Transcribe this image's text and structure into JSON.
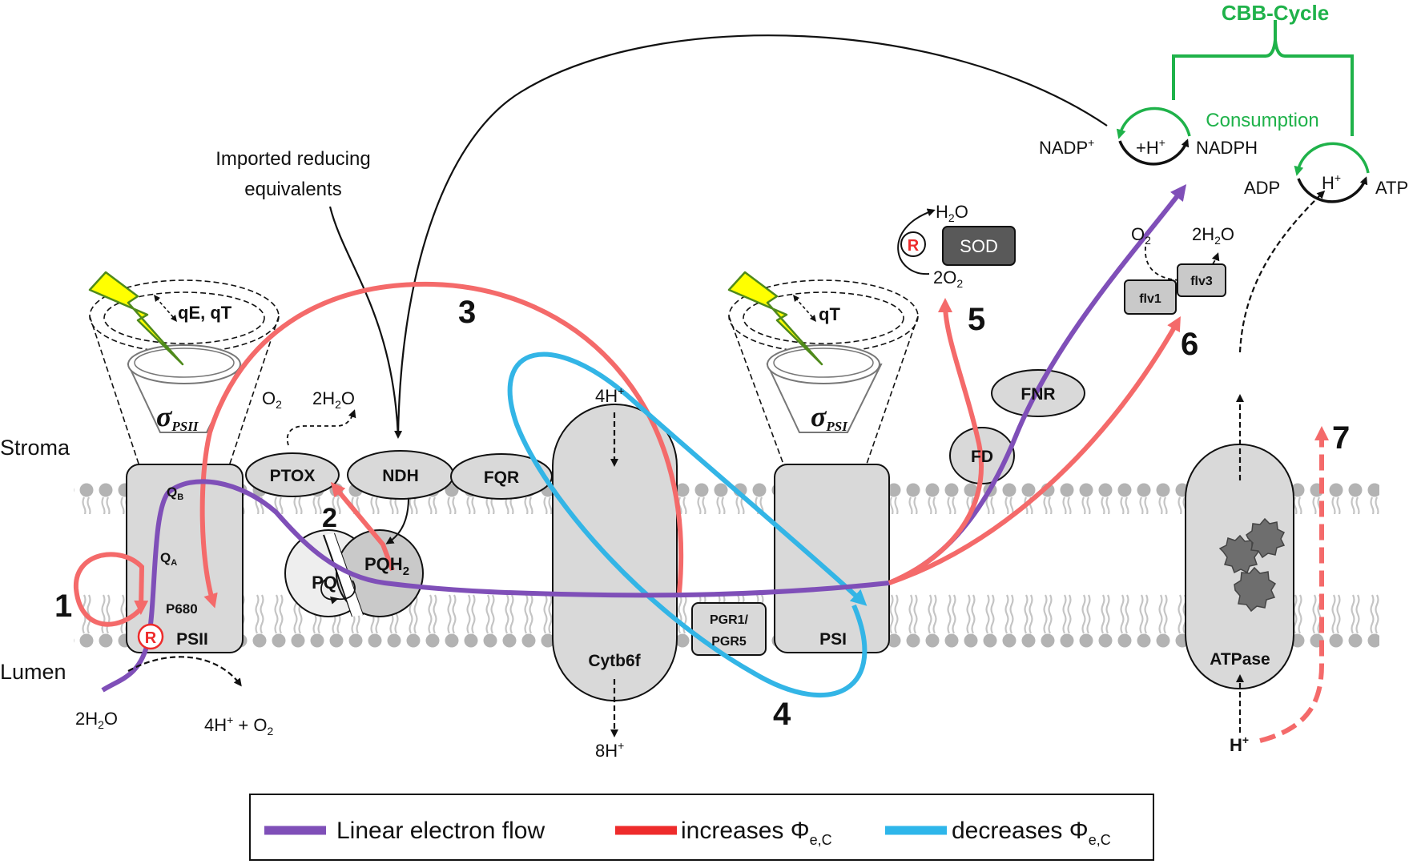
{
  "compartments": {
    "stroma": "Stroma",
    "lumen": "Lumen"
  },
  "complexes": {
    "psii": "PSII",
    "psi": "PSI",
    "cytb6f": "Cytb6f",
    "atpase": "ATPase",
    "ptox": "PTOX",
    "ndh": "NDH",
    "fqr": "FQR",
    "pq": "PQ",
    "pqh2_main": "PQH",
    "pqh2_sub": "2",
    "fd": "FD",
    "fnr": "FNR",
    "sod": "SOD",
    "flv1": "flv1",
    "flv3": "flv3",
    "pgr_line1": "PGR1/",
    "pgr_line2": "PGR5"
  },
  "psii_labels": {
    "qb_main": "Q",
    "qb_sub": "B",
    "qa_main": "Q",
    "qa_sub": "A",
    "p680": "P680"
  },
  "antenna": {
    "sigma": "σ",
    "psii_sub": "PSII",
    "psi_sub": "PSI",
    "psii_quench": "qE, qT",
    "psi_quench": "qT"
  },
  "r_marker": "R",
  "species": {
    "o2_ptox_main": "O",
    "o2_ptox_sub": "2",
    "h2o_ptox_a": "2H",
    "h2o_ptox_sub": "2",
    "h2o_ptox_b": "O",
    "h2o_lumen_a": "2H",
    "h2o_lumen_sub": "2",
    "h2o_lumen_b": "O",
    "lumen_products_a": "4H",
    "lumen_products_sup": "+",
    "lumen_products_b": " + O",
    "lumen_products_sub": "2",
    "cyt_top_a": "4H",
    "cyt_top_sup": "+",
    "cyt_bottom_a": "8H",
    "cyt_bottom_sup": "+",
    "sod_h2o_a": "H",
    "sod_h2o_sub": "2",
    "sod_h2o_b": "O",
    "sod_o2_a": "2O",
    "sod_o2_sub": "2",
    "flv_o2_main": "O",
    "flv_o2_sub": "2",
    "flv_h2o_a": "2H",
    "flv_h2o_sub": "2",
    "flv_h2o_b": "O",
    "nadp_a": "NADP",
    "nadp_sup": "+",
    "hplus_nadp_a": "+H",
    "hplus_nadp_sup": "+",
    "nadph": "NADPH",
    "adp": "ADP",
    "atp": "ATP",
    "hplus_atp_a": "H",
    "hplus_atp_sup": "+",
    "hplus_bottom_a": "H",
    "hplus_bottom_sup": "+"
  },
  "imported_line1": "Imported reducing",
  "imported_line2": "equivalents",
  "cbb_cycle": "CBB-Cycle",
  "consumption": "Consumption",
  "numbers": {
    "n1": "1",
    "n2": "2",
    "n3": "3",
    "n4": "4",
    "n5": "5",
    "n6": "6",
    "n7": "7"
  },
  "legend": {
    "linear": {
      "label": "Linear electron flow",
      "color": "#7f4fb8"
    },
    "increases": {
      "label_a": "increases Φ",
      "label_sub": "e,C",
      "color": "#ee2b2b"
    },
    "decreases": {
      "label_a": "decreases Φ",
      "label_sub": "e,C",
      "color": "#2eb6ea"
    }
  },
  "colors": {
    "linear": "#7f4fb8",
    "increase": "#f46a6a",
    "decrease": "#33b5e6",
    "cbb": "#1fb24a",
    "complex_fill": "#d9d9d9",
    "lipid_head": "#b3b3b3",
    "bolt": "#ffff00",
    "bolt_edge": "#4f8a1c"
  }
}
